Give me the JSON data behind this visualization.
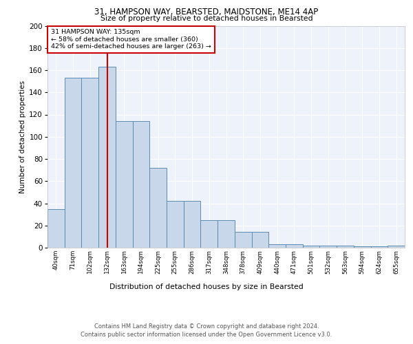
{
  "title": "31, HAMPSON WAY, BEARSTED, MAIDSTONE, ME14 4AP",
  "subtitle": "Size of property relative to detached houses in Bearsted",
  "xlabel": "Distribution of detached houses by size in Bearsted",
  "ylabel": "Number of detached properties",
  "footnote1": "Contains HM Land Registry data © Crown copyright and database right 2024.",
  "footnote2": "Contains public sector information licensed under the Open Government Licence v3.0.",
  "annotation_line1": "31 HAMPSON WAY: 135sqm",
  "annotation_line2": "← 58% of detached houses are smaller (360)",
  "annotation_line3": "42% of semi-detached houses are larger (263) →",
  "bar_labels": [
    "40sqm",
    "71sqm",
    "102sqm",
    "132sqm",
    "163sqm",
    "194sqm",
    "225sqm",
    "255sqm",
    "286sqm",
    "317sqm",
    "348sqm",
    "378sqm",
    "409sqm",
    "440sqm",
    "471sqm",
    "501sqm",
    "532sqm",
    "563sqm",
    "594sqm",
    "624sqm",
    "655sqm"
  ],
  "bar_values": [
    35,
    153,
    153,
    163,
    114,
    114,
    72,
    42,
    42,
    25,
    25,
    14,
    14,
    3,
    3,
    2,
    2,
    2,
    1,
    1,
    2
  ],
  "property_line_x": 3.5,
  "bar_color": "#c8d8ea",
  "bar_edge_color": "#5b8ab0",
  "property_line_color": "#cc0000",
  "background_color": "#eef2fb",
  "ylim": [
    0,
    200
  ],
  "yticks": [
    0,
    20,
    40,
    60,
    80,
    100,
    120,
    140,
    160,
    180,
    200
  ]
}
